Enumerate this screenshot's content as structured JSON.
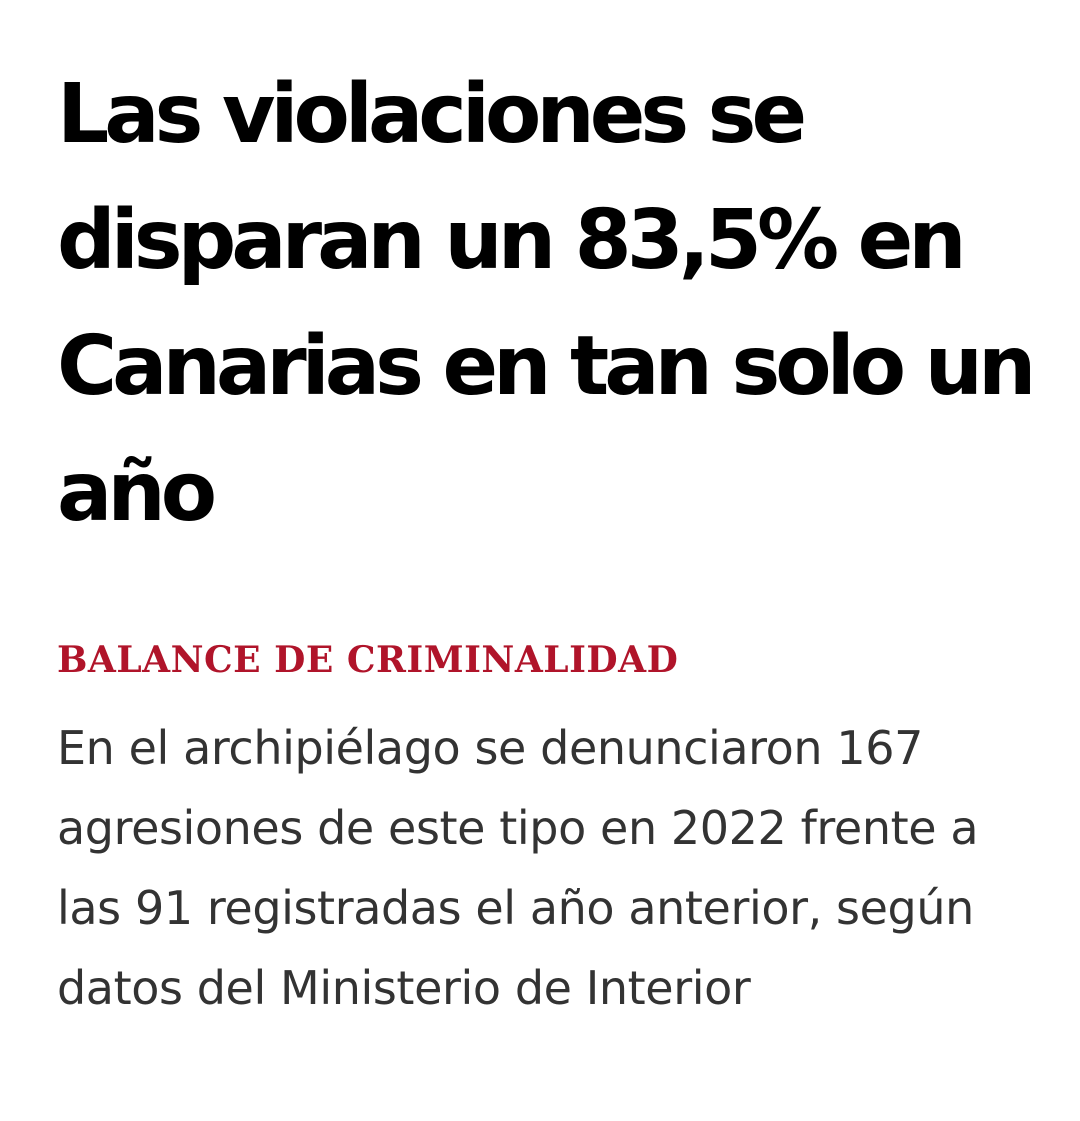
{
  "article": {
    "headline": "Las violaciones se disparan un 83,5% en Canarias en tan solo un año",
    "kicker": "BALANCE DE CRIMINALIDAD",
    "standfirst": "En el archipiélago se denunciaron 167 agresiones de este tipo en 2022 frente a las 91 registradas el año anterior, según datos del Ministerio de Interior"
  },
  "colors": {
    "headline": "#000000",
    "kicker": "#b0142a",
    "standfirst": "#333333",
    "background": "#ffffff"
  }
}
